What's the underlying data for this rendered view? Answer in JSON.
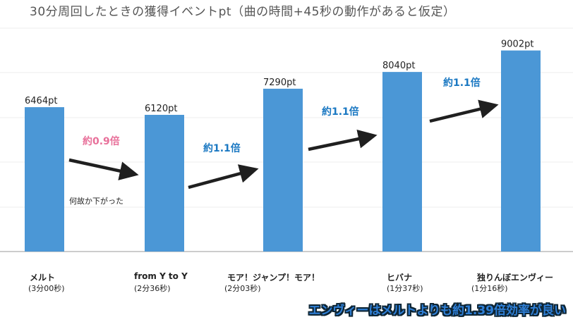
{
  "title": "30分周回したときの獲得イベントpt（曲の時間+45秒の動作があると仮定）",
  "chart_data": {
    "type": "bar",
    "title": "30分周回したときの獲得イベントpt（曲の時間+45秒の動作があると仮定）",
    "categories": [
      "メルト",
      "from Y to Y",
      "モア！ジャンプ！モア！",
      "ヒバナ",
      "独りんぼエンヴィー"
    ],
    "durations": [
      "(3分00秒)",
      "(2分36秒)",
      "(2分03秒)",
      "(1分37秒)",
      "(1分16秒)"
    ],
    "values": [
      6464,
      6120,
      7290,
      8040,
      9002
    ],
    "data_labels": [
      "6464pt",
      "6120pt",
      "7290pt",
      "8040pt",
      "9002pt"
    ],
    "ylim": [
      0,
      10000
    ],
    "grid": true,
    "bar_color": "#4b97d6",
    "annotations": [
      {
        "text": "約0.9倍",
        "color": "#e8709a"
      },
      {
        "text": "約1.1倍",
        "color": "#1a78c2"
      },
      {
        "text": "約1.1倍",
        "color": "#1a78c2"
      },
      {
        "text": "約1.1倍",
        "color": "#1a78c2"
      }
    ],
    "note": "何故か下がった"
  },
  "banner": "エンヴィーはメルトよりも約1.39倍効率が良い"
}
